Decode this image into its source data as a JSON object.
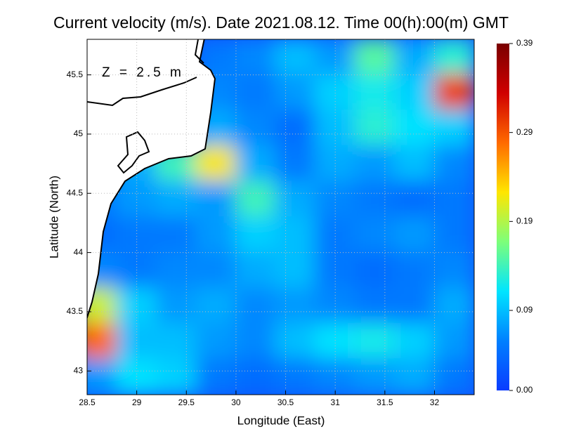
{
  "chart_data": {
    "type": "heatmap",
    "title": "Current velocity (m/s). Date 2021.08.12. Time 00(h):00(m) GMT",
    "annotation": "Z = 2.5 m",
    "x_label": "Longitude (East)",
    "y_label": "Latitude (North)",
    "xlim": [
      28.5,
      32.4
    ],
    "ylim": [
      42.8,
      45.8
    ],
    "xticks": [
      28.5,
      29,
      29.5,
      30,
      30.5,
      31,
      31.5,
      32
    ],
    "yticks": [
      43,
      43.5,
      44,
      44.5,
      45,
      45.5
    ],
    "grid": true,
    "field": {
      "x": [
        28.6,
        29.0,
        29.4,
        29.8,
        30.2,
        30.6,
        31.0,
        31.4,
        31.8,
        32.2
      ],
      "y": [
        45.65,
        45.35,
        45.05,
        44.75,
        44.45,
        44.15,
        43.85,
        43.55,
        43.25,
        42.95
      ],
      "speed": [
        [
          null,
          null,
          null,
          0.05,
          0.06,
          0.09,
          0.07,
          0.15,
          0.08,
          0.13
        ],
        [
          null,
          null,
          null,
          0.06,
          0.05,
          0.07,
          0.1,
          0.12,
          0.1,
          0.3
        ],
        [
          null,
          null,
          null,
          0.08,
          0.06,
          0.04,
          0.09,
          0.13,
          0.11,
          0.1
        ],
        [
          null,
          0.08,
          0.14,
          0.22,
          0.08,
          0.05,
          0.08,
          0.07,
          0.09,
          0.06
        ],
        [
          0.05,
          0.07,
          0.08,
          0.07,
          0.14,
          0.08,
          0.06,
          0.05,
          0.04,
          0.05
        ],
        [
          0.04,
          0.05,
          0.05,
          0.07,
          0.1,
          0.09,
          0.05,
          0.06,
          0.07,
          0.05
        ],
        [
          0.06,
          0.05,
          0.06,
          0.06,
          0.08,
          0.09,
          0.05,
          0.04,
          0.05,
          0.06
        ],
        [
          0.2,
          0.1,
          0.07,
          0.08,
          0.06,
          0.07,
          0.06,
          0.05,
          0.05,
          0.08
        ],
        [
          0.28,
          0.09,
          0.09,
          0.07,
          0.06,
          0.09,
          0.11,
          0.12,
          0.1,
          0.07
        ],
        [
          0.07,
          0.11,
          0.1,
          0.05,
          0.04,
          0.05,
          0.06,
          0.07,
          0.08,
          0.05
        ]
      ]
    },
    "colorbar": {
      "lim": [
        0,
        0.39
      ],
      "ticks": [
        {
          "value": 0,
          "label": "0.00"
        },
        0.09,
        0.19,
        0.29,
        0.39
      ],
      "colors": [
        "#0a3cff",
        "#0080ff",
        "#00e5ff",
        "#7dff7a",
        "#ffe600",
        "#ff6a00",
        "#d00000",
        "#7a0000"
      ]
    }
  }
}
